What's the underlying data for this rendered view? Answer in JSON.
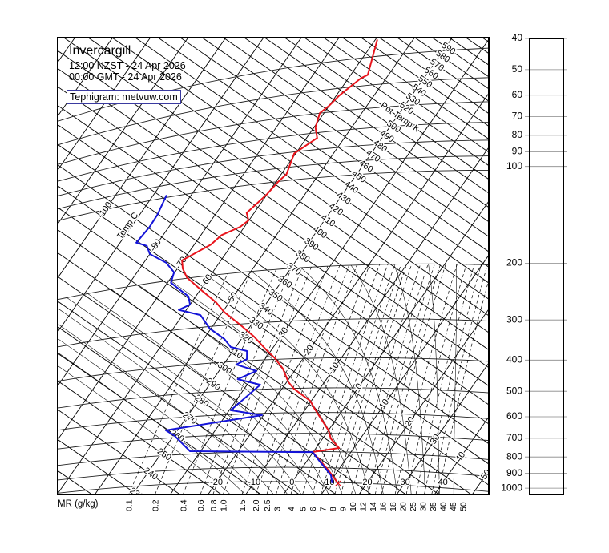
{
  "header": {
    "station": "Invercargill",
    "local_time": "12:00 NZST - 24 Apr 2026",
    "gmt_time": "00:00 GMT - 24 Apr 2026",
    "credit": "Tephigram: metvuw.com"
  },
  "chart_data": {
    "type": "line",
    "diagram": "tephigram",
    "title": "Invercargill",
    "mr_axis_label": "MR (g/kg)",
    "temp_axis_label": "Temp C",
    "pot_temp_axis_label": "Pot Temp K",
    "y_axis": "pressure (hPa), log scale",
    "pressure_ticks": [
      40,
      50,
      60,
      70,
      80,
      90,
      100,
      200,
      300,
      400,
      500,
      600,
      700,
      800,
      900,
      1000
    ],
    "mixing_ratio_labels": [
      "0.1",
      "0.2",
      "0.4",
      "0.6",
      "0.8",
      "1.0",
      "1.5",
      "2.0",
      "2.5",
      "3",
      "4",
      "5",
      "6",
      "7",
      "8",
      "9",
      "10",
      "12",
      "14",
      "16",
      "18",
      "20",
      "25",
      "30",
      "35",
      "40",
      "45",
      "50"
    ],
    "isotherm_labels_diagonal": [
      "-100",
      "-80",
      "-70",
      "-60",
      "-50",
      "-30",
      "-20",
      "-10",
      "0",
      "10",
      "20",
      "30",
      "40",
      "50"
    ],
    "isotherm_labels_bottom": [
      "-20",
      "-10",
      "0",
      "10",
      "20",
      "30",
      "40"
    ],
    "pot_temp_labels": [
      "230",
      "240",
      "250",
      "260",
      "270",
      "280",
      "290",
      "300",
      "310",
      "320",
      "330",
      "340",
      "350",
      "360",
      "370",
      "380",
      "390",
      "400",
      "410",
      "420",
      "430",
      "440",
      "450",
      "460",
      "470",
      "480",
      "490",
      "500",
      "520",
      "530",
      "540",
      "550",
      "560",
      "570",
      "580",
      "590"
    ],
    "series": [
      {
        "color": "#e8141c",
        "points_p_t": [
          [
            35,
            -59.5
          ],
          [
            46,
            -55.5
          ],
          [
            47,
            -56.7
          ],
          [
            53,
            -59.2
          ],
          [
            57,
            -60.0
          ],
          [
            60,
            -61.1
          ],
          [
            67,
            -59.6
          ],
          [
            73,
            -57.2
          ],
          [
            81,
            -60.4
          ],
          [
            95,
            -58.6
          ],
          [
            100,
            -59.4
          ],
          [
            110,
            -60.1
          ],
          [
            125,
            -62.0
          ],
          [
            133,
            -60.1
          ],
          [
            139,
            -61.1
          ],
          [
            146,
            -64.5
          ],
          [
            156,
            -65.6
          ],
          [
            172,
            -70.3
          ],
          [
            184,
            -68.6
          ],
          [
            199,
            -65.8
          ],
          [
            225,
            -59.2
          ],
          [
            249,
            -53.5
          ],
          [
            271,
            -49.4
          ],
          [
            302,
            -42.9
          ],
          [
            333,
            -37.1
          ],
          [
            372,
            -31.2
          ],
          [
            396,
            -27.6
          ],
          [
            430,
            -23.5
          ],
          [
            477,
            -19.5
          ],
          [
            502,
            -16.8
          ],
          [
            550,
            -10.3
          ],
          [
            584,
            -7.6
          ],
          [
            608,
            -5.7
          ],
          [
            684,
            0.0
          ],
          [
            727,
            2.2
          ],
          [
            778,
            6.1
          ],
          [
            803,
            -0.2
          ],
          [
            841,
            2.5
          ],
          [
            918,
            7.5
          ],
          [
            1006,
            12.4
          ]
        ]
      },
      {
        "color": "#1414d8",
        "points_p_t": [
          [
            98,
            -86.5
          ],
          [
            114,
            -85.3
          ],
          [
            125,
            -85.1
          ],
          [
            140,
            -85.7
          ],
          [
            146,
            -82.3
          ],
          [
            157,
            -80.0
          ],
          [
            172,
            -74.1
          ],
          [
            188,
            -70.2
          ],
          [
            204,
            -69.1
          ],
          [
            232,
            -61.9
          ],
          [
            248,
            -60.0
          ],
          [
            256,
            -62.0
          ],
          [
            272,
            -55.3
          ],
          [
            305,
            -50.3
          ],
          [
            334,
            -44.5
          ],
          [
            357,
            -41.3
          ],
          [
            371,
            -36.3
          ],
          [
            395,
            -34.8
          ],
          [
            410,
            -36.6
          ],
          [
            434,
            -30.1
          ],
          [
            459,
            -33.5
          ],
          [
            483,
            -26.5
          ],
          [
            581,
            -29.6
          ],
          [
            608,
            -20.4
          ],
          [
            658,
            -43.1
          ],
          [
            687,
            -40.0
          ],
          [
            783,
            -32.8
          ],
          [
            804,
            -2.3
          ],
          [
            803,
            -0.2
          ],
          [
            867,
            3.9
          ],
          [
            950,
            9.0
          ],
          [
            1006,
            10.8
          ]
        ]
      }
    ]
  }
}
